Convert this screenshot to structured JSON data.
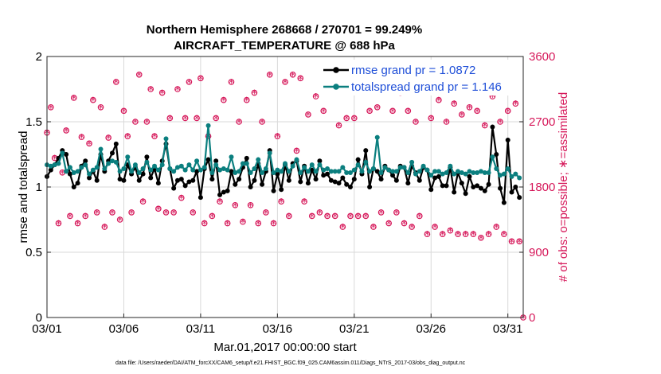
{
  "chart_data": {
    "type": "line",
    "title_line1": "Northern Hemisphere 268668 / 270701 = 99.249%",
    "title_line2": "AIRCRAFT_TEMPERATURE @ 688 hPa",
    "xlabel": "Mar.01,2017 00:00:00 start",
    "ylabel_left": "rmse and totalspread",
    "ylabel_right": "# of obs: o=possible; ∗=assimilated",
    "xlim": [
      1,
      32
    ],
    "ylim_left": [
      0,
      2
    ],
    "ylim_right": [
      0,
      3600
    ],
    "xtick_values": [
      1,
      6,
      11,
      16,
      21,
      26,
      31
    ],
    "xtick_labels": [
      "03/01",
      "03/06",
      "03/11",
      "03/16",
      "03/21",
      "03/26",
      "03/31"
    ],
    "ytick_left": [
      "0",
      "0.5",
      "1",
      "1.5",
      "2"
    ],
    "ytick_left_values": [
      0,
      0.5,
      1,
      1.5,
      2
    ],
    "ytick_right": [
      "0",
      "900",
      "1800",
      "2700",
      "3600"
    ],
    "ytick_right_values": [
      0,
      900,
      1800,
      2700,
      3600
    ],
    "legend": [
      "rmse grand pr = 1.0872",
      "totalspread grand pr = 1.146"
    ],
    "legend_position": "top-right",
    "grid": true,
    "footer": "data file: /Users/raeder/DAI/ATM_forcXX/CAM6_setup/f.e21.FHIST_BGC.f09_025.CAM6assim.011/Diags_NTrS_2017-03/obs_diag_output.nc",
    "series": [
      {
        "name": "rmse",
        "color": "#000000",
        "x": [
          1.0,
          1.25,
          1.5,
          1.75,
          2.0,
          2.25,
          2.5,
          2.75,
          3.0,
          3.25,
          3.5,
          3.75,
          4.0,
          4.25,
          4.5,
          4.75,
          5.0,
          5.25,
          5.5,
          5.75,
          6.0,
          6.25,
          6.5,
          6.75,
          7.0,
          7.25,
          7.5,
          7.75,
          8.0,
          8.25,
          8.5,
          8.75,
          9.0,
          9.25,
          9.5,
          9.75,
          10.0,
          10.25,
          10.5,
          10.75,
          11.0,
          11.25,
          11.5,
          11.75,
          12.0,
          12.25,
          12.5,
          12.75,
          13.0,
          13.25,
          13.5,
          13.75,
          14.0,
          14.25,
          14.5,
          14.75,
          15.0,
          15.25,
          15.5,
          15.75,
          16.0,
          16.25,
          16.5,
          16.75,
          17.0,
          17.25,
          17.5,
          17.75,
          18.0,
          18.25,
          18.5,
          18.75,
          19.0,
          19.25,
          19.5,
          19.75,
          20.0,
          20.25,
          20.5,
          20.75,
          21.0,
          21.25,
          21.5,
          21.75,
          22.0,
          22.25,
          22.5,
          22.75,
          23.0,
          23.25,
          23.5,
          23.75,
          24.0,
          24.25,
          24.5,
          24.75,
          25.0,
          25.25,
          25.5,
          25.75,
          26.0,
          26.25,
          26.5,
          26.75,
          27.0,
          27.25,
          27.5,
          27.75,
          28.0,
          28.25,
          28.5,
          28.75,
          29.0,
          29.25,
          29.5,
          29.75,
          30.0,
          30.25,
          30.5,
          30.75,
          31.0,
          31.25,
          31.5,
          31.75
        ],
        "y": [
          1.08,
          1.13,
          1.17,
          1.22,
          1.28,
          1.25,
          1.1,
          1.0,
          1.03,
          1.16,
          1.2,
          1.07,
          1.12,
          1.05,
          1.25,
          1.12,
          1.2,
          1.26,
          1.33,
          1.06,
          1.05,
          1.17,
          1.1,
          1.15,
          1.05,
          1.1,
          1.23,
          1.07,
          1.14,
          1.03,
          1.2,
          1.33,
          1.14,
          0.99,
          1.05,
          1.06,
          1.01,
          1.04,
          1.05,
          1.12,
          0.92,
          1.14,
          1.21,
          1.06,
          1.2,
          0.94,
          0.96,
          0.97,
          1.12,
          1.02,
          1.06,
          1.15,
          1.22,
          1.0,
          1.05,
          1.18,
          1.02,
          1.12,
          1.28,
          0.97,
          1.1,
          0.98,
          1.17,
          1.05,
          1.18,
          1.2,
          1.04,
          1.16,
          1.03,
          1.13,
          1.06,
          1.2,
          1.09,
          1.1,
          1.05,
          1.04,
          1.03,
          1.07,
          1.02,
          1.0,
          1.06,
          1.21,
          1.1,
          1.28,
          1.0,
          1.14,
          1.12,
          1.06,
          1.16,
          1.13,
          1.09,
          1.05,
          1.16,
          1.15,
          1.03,
          1.16,
          1.11,
          1.05,
          1.15,
          1.13,
          0.98,
          1.07,
          1.08,
          1.01,
          1.01,
          1.15,
          0.96,
          1.11,
          1.03,
          0.95,
          1.08,
          1.0,
          1.01,
          0.99,
          0.97,
          1.02,
          1.46,
          1.25,
          0.99,
          0.88,
          1.36,
          0.96,
          1.0,
          0.92
        ]
      },
      {
        "name": "totalspread",
        "color": "#0b7f7f",
        "x": [
          1.0,
          1.25,
          1.5,
          1.75,
          2.0,
          2.25,
          2.5,
          2.75,
          3.0,
          3.25,
          3.5,
          3.75,
          4.0,
          4.25,
          4.5,
          4.75,
          5.0,
          5.25,
          5.5,
          5.75,
          6.0,
          6.25,
          6.5,
          6.75,
          7.0,
          7.25,
          7.5,
          7.75,
          8.0,
          8.25,
          8.5,
          8.75,
          9.0,
          9.25,
          9.5,
          9.75,
          10.0,
          10.25,
          10.5,
          10.75,
          11.0,
          11.25,
          11.5,
          11.75,
          12.0,
          12.25,
          12.5,
          12.75,
          13.0,
          13.25,
          13.5,
          13.75,
          14.0,
          14.25,
          14.5,
          14.75,
          15.0,
          15.25,
          15.5,
          15.75,
          16.0,
          16.25,
          16.5,
          16.75,
          17.0,
          17.25,
          17.5,
          17.75,
          18.0,
          18.25,
          18.5,
          18.75,
          19.0,
          19.25,
          19.5,
          19.75,
          20.0,
          20.25,
          20.5,
          20.75,
          21.0,
          21.25,
          21.5,
          21.75,
          22.0,
          22.25,
          22.5,
          22.75,
          23.0,
          23.25,
          23.5,
          23.75,
          24.0,
          24.25,
          24.5,
          24.75,
          25.0,
          25.25,
          25.5,
          25.75,
          26.0,
          26.25,
          26.5,
          26.75,
          27.0,
          27.25,
          27.5,
          27.75,
          28.0,
          28.25,
          28.5,
          28.75,
          29.0,
          29.25,
          29.5,
          29.75,
          30.0,
          30.25,
          30.5,
          30.75,
          31.0,
          31.25,
          31.5,
          31.75
        ],
        "y": [
          1.17,
          1.16,
          1.17,
          1.18,
          1.26,
          1.12,
          1.15,
          1.11,
          1.12,
          1.15,
          1.17,
          1.1,
          1.13,
          1.15,
          1.29,
          1.14,
          1.18,
          1.2,
          1.19,
          1.12,
          1.14,
          1.23,
          1.12,
          1.17,
          1.11,
          1.14,
          1.19,
          1.13,
          1.16,
          1.13,
          1.17,
          1.37,
          1.14,
          1.12,
          1.15,
          1.16,
          1.13,
          1.17,
          1.13,
          1.2,
          1.13,
          1.15,
          1.47,
          1.11,
          1.17,
          1.13,
          1.14,
          1.13,
          1.23,
          1.11,
          1.12,
          1.18,
          1.18,
          1.11,
          1.14,
          1.21,
          1.11,
          1.14,
          1.26,
          1.11,
          1.13,
          1.12,
          1.18,
          1.12,
          1.16,
          1.21,
          1.11,
          1.15,
          1.12,
          1.17,
          1.12,
          1.17,
          1.13,
          1.14,
          1.12,
          1.12,
          1.12,
          1.15,
          1.11,
          1.11,
          1.13,
          1.17,
          1.12,
          1.19,
          1.12,
          1.14,
          1.38,
          1.11,
          1.15,
          1.13,
          1.12,
          1.12,
          1.15,
          1.15,
          1.11,
          1.19,
          1.1,
          1.12,
          1.16,
          1.13,
          1.09,
          1.12,
          1.12,
          1.1,
          1.11,
          1.16,
          1.1,
          1.12,
          1.11,
          1.1,
          1.12,
          1.11,
          1.11,
          1.12,
          1.11,
          1.11,
          1.23,
          1.14,
          1.09,
          1.1,
          1.14,
          1.08,
          1.1,
          1.07
        ]
      },
      {
        "name": "obs_possible_assimilated",
        "color": "#d6185a",
        "axis": "right",
        "x": [
          1.0,
          1.25,
          1.5,
          1.75,
          2.0,
          2.25,
          2.5,
          2.75,
          3.0,
          3.25,
          3.5,
          3.75,
          4.0,
          4.25,
          4.5,
          4.75,
          5.0,
          5.25,
          5.5,
          5.75,
          6.0,
          6.25,
          6.5,
          6.75,
          7.0,
          7.25,
          7.5,
          7.75,
          8.0,
          8.25,
          8.5,
          8.75,
          9.0,
          9.25,
          9.5,
          9.75,
          10.0,
          10.25,
          10.5,
          10.75,
          11.0,
          11.25,
          11.5,
          11.75,
          12.0,
          12.25,
          12.5,
          12.75,
          13.0,
          13.25,
          13.5,
          13.75,
          14.0,
          14.25,
          14.5,
          14.75,
          15.0,
          15.25,
          15.5,
          15.75,
          16.0,
          16.25,
          16.5,
          16.75,
          17.0,
          17.25,
          17.5,
          17.75,
          18.0,
          18.25,
          18.5,
          18.75,
          19.0,
          19.25,
          19.5,
          19.75,
          20.0,
          20.25,
          20.5,
          20.75,
          21.0,
          21.25,
          21.5,
          21.75,
          22.0,
          22.25,
          22.5,
          22.75,
          23.0,
          23.25,
          23.5,
          23.75,
          24.0,
          24.25,
          24.5,
          24.75,
          25.0,
          25.25,
          25.5,
          25.75,
          26.0,
          26.25,
          26.5,
          26.75,
          27.0,
          27.25,
          27.5,
          27.75,
          28.0,
          28.25,
          28.5,
          28.75,
          29.0,
          29.25,
          29.5,
          29.75,
          30.0,
          30.25,
          30.5,
          30.75,
          31.0,
          31.25,
          31.5,
          31.75,
          32.0
        ],
        "y": [
          2550,
          2900,
          2200,
          1300,
          2000,
          2580,
          1400,
          3030,
          1300,
          2490,
          1400,
          2400,
          3000,
          1450,
          2900,
          1250,
          2480,
          1450,
          3250,
          1350,
          2850,
          2500,
          1450,
          2700,
          3350,
          1600,
          2700,
          3150,
          2500,
          1500,
          3100,
          1450,
          2750,
          1450,
          3150,
          1650,
          2750,
          3250,
          1450,
          2750,
          3300,
          1300,
          2500,
          1400,
          2750,
          1600,
          3000,
          1300,
          3250,
          1550,
          2700,
          1320,
          3000,
          1550,
          3100,
          1300,
          2700,
          1450,
          3350,
          1300,
          2500,
          1600,
          3250,
          1400,
          3350,
          2300,
          3300,
          1600,
          2800,
          1400,
          3050,
          1450,
          2850,
          1400,
          3150,
          1400,
          2650,
          1250,
          2750,
          1400,
          2750,
          1400,
          3150,
          1400,
          2850,
          1250,
          2900,
          1450,
          3250,
          1300,
          2850,
          1450,
          3100,
          1300,
          2850,
          1250,
          2700,
          1400,
          3150,
          1150,
          2750,
          1250,
          3000,
          1150,
          2700,
          1200,
          2950,
          1150,
          2800,
          1150,
          2900,
          1150,
          2850,
          1100,
          2650,
          1150,
          3050,
          1250,
          2700,
          1150,
          2850,
          1050,
          2950,
          1050,
          0
        ]
      }
    ]
  }
}
